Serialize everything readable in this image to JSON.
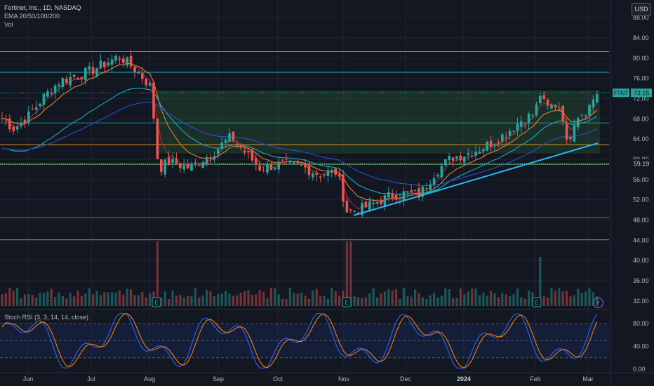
{
  "legend": {
    "symbol": "Fortinet, Inc., 1D, NASDAQ",
    "ema": "EMA 20/50/100/200",
    "vol": "Vol"
  },
  "currency": "USD",
  "rsi": {
    "title": "Stoch RSI (3, 3, 14, 14, close)",
    "ticks": [
      "80.00",
      "40.00",
      "0.00"
    ],
    "k_color": "#2962ff",
    "d_color": "#f57c00"
  },
  "colors": {
    "up": "#26a69a",
    "down": "#ef5350",
    "ema20": "#b2283a",
    "ema50": "#e0812f",
    "ema100": "#1fa6c2",
    "ema200": "#2b4fc9",
    "accent_price": "#26a69a"
  },
  "events_icon": "bolt-icon",
  "chart_data": {
    "type": "candlestick",
    "symbol": "FTNT",
    "price_label": "73.15",
    "last_price": 73.15,
    "reference_label": "59.19",
    "reference_price": 59.19,
    "y_ticks": [
      "88.00",
      "84.00",
      "80.00",
      "76.00",
      "72.00",
      "68.00",
      "64.00",
      "60.00",
      "56.00",
      "52.00",
      "48.00",
      "44.00",
      "40.00",
      "36.00",
      "32.00"
    ],
    "x_ticks": [
      "Jun",
      "Jul",
      "Aug",
      "Sep",
      "Oct",
      "Nov",
      "Dec",
      "2024",
      "Feb",
      "Mar"
    ],
    "ylim": [
      31,
      89
    ],
    "horizontal_levels": [
      {
        "price": 81.3,
        "color": "#9598a1"
      },
      {
        "price": 77.2,
        "color": "#26c6da"
      },
      {
        "price": 67.2,
        "color": "#26a69a"
      },
      {
        "price": 62.9,
        "color": "#f9a825"
      },
      {
        "price": 59.0,
        "color": "#66bb6a"
      },
      {
        "price": 48.5,
        "color": "#ef5350"
      },
      {
        "price": 44.1,
        "color": "#9598a1"
      }
    ],
    "range_box": {
      "start": "Aug",
      "end": "Mar",
      "top": 73.8,
      "bottom": 61.0
    },
    "trendline": {
      "from": {
        "date": "Nov",
        "price": 48.9
      },
      "to": {
        "date": "Mar",
        "price": 63.2
      }
    },
    "earnings_markers": [
      "Aug",
      "Nov",
      "Feb"
    ],
    "key_closes": [
      {
        "date": "Jun",
        "close": 68.5
      },
      {
        "date": "Jul",
        "close": 77.5
      },
      {
        "date": "Jul-mid",
        "close": 80.4
      },
      {
        "date": "Aug",
        "close": 74.3
      },
      {
        "date": "Aug-gap",
        "close": 57.5
      },
      {
        "date": "Sep",
        "close": 64.5
      },
      {
        "date": "Oct",
        "close": 58.3
      },
      {
        "date": "Oct-late",
        "close": 56.8
      },
      {
        "date": "Nov",
        "close": 49.5
      },
      {
        "date": "Dec",
        "close": 53.3
      },
      {
        "date": "2024",
        "close": 60.9
      },
      {
        "date": "Jan-late",
        "close": 68.0
      },
      {
        "date": "Feb",
        "close": 73.5
      },
      {
        "date": "Feb-low",
        "close": 62.4
      },
      {
        "date": "Mar",
        "close": 73.15
      }
    ]
  }
}
